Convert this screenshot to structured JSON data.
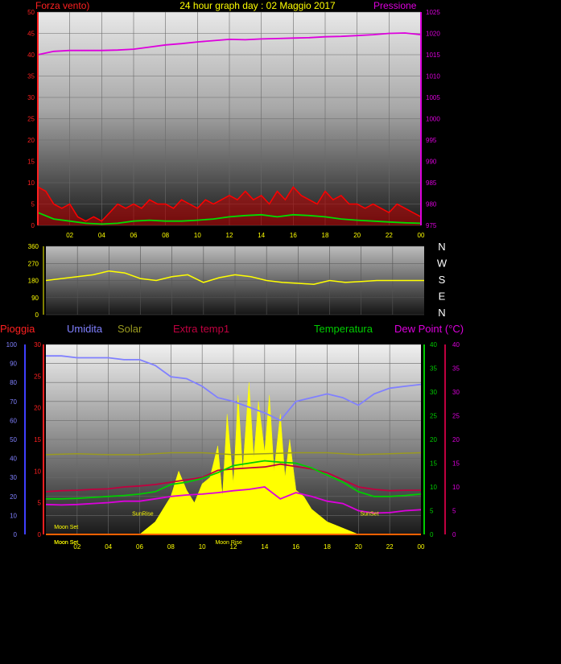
{
  "colors": {
    "wind": "#ff0000",
    "wind_avg": "#00dd00",
    "pressure": "#dd00dd",
    "direction": "#ffff00",
    "humidity": "#8080ff",
    "solar": "#9a9a20",
    "extra_temp": "#c00040",
    "temperature": "#00cc00",
    "dewpoint": "#dd00dd",
    "rain": "#4040ff",
    "sun": "#ffff00",
    "tick_x": "#ffff00"
  },
  "chart_data": [
    {
      "type": "line",
      "title": "24 hour graph day : 02 Maggio 2017",
      "left_label": "Forza vento)",
      "right_label": "Pressione",
      "x_ticks": [
        "02",
        "04",
        "06",
        "08",
        "10",
        "12",
        "14",
        "16",
        "18",
        "20",
        "22",
        "00"
      ],
      "y_left_ticks": [
        "0",
        "5",
        "10",
        "15",
        "20",
        "25",
        "30",
        "35",
        "40",
        "45",
        "50"
      ],
      "y_left_range": [
        0,
        50
      ],
      "y_right_ticks": [
        "975",
        "980",
        "985",
        "990",
        "995",
        "1000",
        "1005",
        "1010",
        "1015",
        "1020",
        "1025"
      ],
      "y_right_range": [
        975,
        1025
      ],
      "series": [
        {
          "key": "pressure",
          "axis": "right",
          "x": [
            0,
            1,
            2,
            3,
            4,
            5,
            6,
            7,
            8,
            9,
            10,
            11,
            12,
            13,
            14,
            15,
            16,
            17,
            18,
            19,
            20,
            21,
            22,
            23,
            24
          ],
          "values": [
            1015.0,
            1015.8,
            1016.0,
            1016.0,
            1016.0,
            1016.1,
            1016.3,
            1016.8,
            1017.3,
            1017.6,
            1018.0,
            1018.3,
            1018.6,
            1018.5,
            1018.7,
            1018.8,
            1018.9,
            1019.0,
            1019.2,
            1019.3,
            1019.5,
            1019.7,
            1020.0,
            1020.1,
            1019.7
          ]
        },
        {
          "key": "wind",
          "axis": "left",
          "x": [
            0,
            0.5,
            1,
            1.5,
            2,
            2.5,
            3,
            3.5,
            4,
            4.5,
            5,
            5.5,
            6,
            6.5,
            7,
            7.5,
            8,
            8.5,
            9,
            9.5,
            10,
            10.5,
            11,
            11.5,
            12,
            12.5,
            13,
            13.5,
            14,
            14.5,
            15,
            15.5,
            16,
            16.5,
            17,
            17.5,
            18,
            18.5,
            19,
            19.5,
            20,
            20.5,
            21,
            21.5,
            22,
            22.5,
            23,
            23.5,
            24
          ],
          "values": [
            9,
            8,
            5,
            4,
            5,
            2,
            1,
            2,
            1,
            3,
            5,
            4,
            5,
            4,
            6,
            5,
            5,
            4,
            6,
            5,
            4,
            6,
            5,
            6,
            7,
            6,
            8,
            6,
            7,
            5,
            8,
            6,
            9,
            7,
            6,
            5,
            8,
            6,
            7,
            5,
            5,
            4,
            5,
            4,
            3,
            5,
            4,
            3,
            2
          ]
        },
        {
          "key": "wind_avg",
          "axis": "left",
          "x": [
            0,
            1,
            2,
            3,
            4,
            5,
            6,
            7,
            8,
            9,
            10,
            11,
            12,
            13,
            14,
            15,
            16,
            17,
            18,
            19,
            20,
            21,
            22,
            23,
            24
          ],
          "values": [
            3,
            1.5,
            1,
            0.5,
            0.3,
            0.5,
            1,
            1.2,
            1,
            1,
            1.2,
            1.5,
            2,
            2.3,
            2.5,
            2,
            2.5,
            2.3,
            2,
            1.5,
            1.2,
            1,
            0.8,
            0.6,
            0.5
          ]
        }
      ]
    },
    {
      "type": "line",
      "x_ticks": [],
      "y_ticks": [
        "0",
        "90",
        "180",
        "270",
        "360"
      ],
      "y_range": [
        0,
        360
      ],
      "compass": [
        "N",
        "W",
        "S",
        "E",
        "N"
      ],
      "series": [
        {
          "key": "direction",
          "x": [
            0,
            1,
            2,
            3,
            4,
            5,
            6,
            7,
            8,
            9,
            10,
            11,
            12,
            13,
            14,
            15,
            16,
            17,
            18,
            19,
            20,
            21,
            22,
            23,
            24
          ],
          "values": [
            180,
            190,
            200,
            210,
            230,
            220,
            190,
            180,
            200,
            210,
            170,
            195,
            210,
            200,
            180,
            170,
            165,
            160,
            180,
            170,
            175,
            180,
            180,
            180,
            180
          ]
        }
      ]
    },
    {
      "type": "line",
      "labels": {
        "rain": "Pioggia",
        "humidity": "Umidita",
        "solar": "Solar",
        "extra_temp": "Extra temp1",
        "temperature": "Temperatura",
        "dewpoint": "Dew Point (°C)"
      },
      "x_ticks": [
        "02",
        "04",
        "06",
        "08",
        "10",
        "12",
        "14",
        "16",
        "18",
        "20",
        "22",
        "00"
      ],
      "axis_humidity_ticks": [
        "0",
        "10",
        "20",
        "30",
        "40",
        "50",
        "60",
        "70",
        "80",
        "90",
        "100"
      ],
      "axis_humidity_range": [
        0,
        100
      ],
      "axis_rain_ticks": [
        "0",
        "5",
        "10",
        "15",
        "20",
        "25",
        "30"
      ],
      "axis_rain_range": [
        0,
        30
      ],
      "axis_temp_ticks": [
        "0",
        "5",
        "10",
        "15",
        "20",
        "25",
        "30",
        "35",
        "40"
      ],
      "axis_temp_range": [
        0,
        40
      ],
      "axis_dew_ticks": [
        "0",
        "5",
        "10",
        "15",
        "20",
        "25",
        "30",
        "35",
        "40"
      ],
      "axis_dew_range": [
        0,
        40
      ],
      "annotations": [
        {
          "text": "Moon Set",
          "x": 1.3,
          "y_frac": 0.03
        },
        {
          "text": "Moon Set",
          "x": 1.3,
          "y_frac": -0.05
        },
        {
          "text": "SunRise",
          "x": 6.2,
          "y_frac": 0.1
        },
        {
          "text": "SunSet",
          "x": 20.7,
          "y_frac": 0.1
        },
        {
          "text": "Moon Rise",
          "x": 11.7,
          "y_frac": -0.05
        },
        {
          "text": "Moon Set",
          "x": 1.3,
          "y_frac": -0.05
        }
      ],
      "series": [
        {
          "key": "humidity",
          "axis": "humidity",
          "x": [
            0,
            1,
            2,
            3,
            4,
            5,
            6,
            7,
            8,
            9,
            10,
            11,
            12,
            13,
            14,
            15,
            16,
            17,
            18,
            19,
            20,
            21,
            22,
            23,
            24
          ],
          "values": [
            94,
            94,
            93,
            93,
            93,
            92,
            92,
            89,
            83,
            82,
            78,
            72,
            70,
            67,
            64,
            60,
            70,
            72,
            74,
            72,
            68,
            74,
            77,
            78,
            79
          ]
        },
        {
          "key": "extra_temp",
          "axis": "temp",
          "x": [
            0,
            1,
            2,
            3,
            4,
            5,
            6,
            7,
            8,
            9,
            10,
            11,
            12,
            13,
            14,
            15,
            16,
            17,
            18,
            19,
            20,
            21,
            22,
            23,
            24
          ],
          "values": [
            9,
            9.2,
            9.3,
            9.5,
            9.6,
            10,
            10.2,
            10.5,
            11,
            11.5,
            12,
            13.5,
            13.8,
            14,
            14.2,
            14.8,
            14.3,
            13.8,
            13,
            11.5,
            10,
            9.5,
            9.2,
            9.3,
            9.3
          ]
        },
        {
          "key": "temperature",
          "axis": "temp",
          "x": [
            0,
            1,
            2,
            3,
            4,
            5,
            6,
            7,
            8,
            9,
            10,
            11,
            12,
            13,
            14,
            15,
            16,
            17,
            18,
            19,
            20,
            21,
            22,
            23,
            24
          ],
          "values": [
            7.5,
            7.5,
            7.6,
            7.8,
            8,
            8.2,
            8.5,
            9,
            10.5,
            11,
            11.8,
            13,
            14.5,
            15,
            15.5,
            15.2,
            15,
            14,
            12.5,
            11,
            9,
            8,
            8,
            8.2,
            8.5
          ]
        },
        {
          "key": "dewpoint",
          "axis": "dew",
          "x": [
            0,
            1,
            2,
            3,
            4,
            5,
            6,
            7,
            8,
            9,
            10,
            11,
            12,
            13,
            14,
            15,
            16,
            17,
            18,
            19,
            20,
            21,
            22,
            23,
            24
          ],
          "values": [
            6.3,
            6.2,
            6.3,
            6.5,
            6.7,
            7,
            7,
            7.5,
            8,
            8.3,
            8.5,
            8.8,
            9.2,
            9.5,
            10,
            7.5,
            8.8,
            8,
            7,
            6.5,
            5,
            4.5,
            4.6,
            5,
            5.2
          ]
        },
        {
          "key": "solar",
          "axis": "humidity",
          "x": [
            0,
            2,
            4,
            6,
            8,
            10,
            12,
            14,
            16,
            18,
            20,
            22,
            24
          ],
          "values": [
            42,
            42.5,
            42,
            42,
            43,
            43,
            42,
            42.5,
            43,
            43,
            42,
            42.5,
            43
          ]
        },
        {
          "key": "sun",
          "axis": "rain",
          "x": [
            6,
            7,
            7.5,
            8,
            8.5,
            9,
            9.5,
            10,
            10.5,
            11,
            11.3,
            11.6,
            12,
            12.3,
            12.6,
            13,
            13.3,
            13.6,
            14,
            14.3,
            14.6,
            15,
            15.3,
            15.6,
            16,
            16.5,
            17,
            17.5,
            18,
            19,
            20
          ],
          "values": [
            0,
            2,
            4,
            6,
            10,
            7,
            5,
            8,
            9,
            14,
            6,
            19,
            8,
            22,
            10,
            24,
            12,
            21,
            13,
            22,
            10,
            19,
            9,
            15,
            7,
            6,
            4,
            3,
            2,
            1,
            0
          ]
        },
        {
          "key": "rain",
          "axis": "rain",
          "x": [
            0,
            24
          ],
          "values": [
            0,
            0
          ]
        }
      ]
    }
  ]
}
